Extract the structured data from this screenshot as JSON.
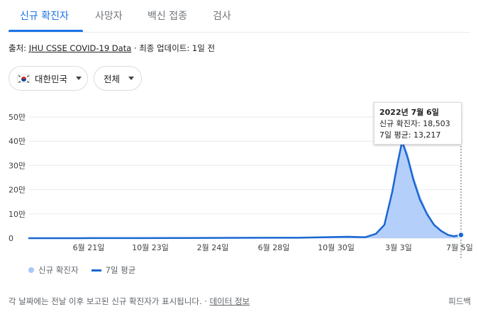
{
  "tabs": [
    {
      "label": "신규 확진자",
      "active": true
    },
    {
      "label": "사망자",
      "active": false
    },
    {
      "label": "백신 접종",
      "active": false
    },
    {
      "label": "검사",
      "active": false
    }
  ],
  "source": {
    "prefix": "출처: ",
    "link": "JHU CSSE COVID-19 Data",
    "suffix": " · 최종 업데이트: 1일 전"
  },
  "filters": {
    "country": "대한민국",
    "region": "전체"
  },
  "colors": {
    "accent": "#1a73e8",
    "bars": "#a8c7fa",
    "avg_line": "#1967d2"
  },
  "chart_data": {
    "type": "area",
    "yticks": [
      "0",
      "10만",
      "20만",
      "30만",
      "40만",
      "50만"
    ],
    "ylim": [
      0,
      500000
    ],
    "xticks": [
      "6월 21일",
      "10월 23일",
      "2월 24일",
      "6월 28일",
      "10월 30일",
      "3월 3일",
      "7월 5일"
    ],
    "series": [
      {
        "name": "신규 확진자",
        "kind": "bars",
        "x": [
          "2020-01",
          "2020-04",
          "2020-07",
          "2020-10",
          "2021-01",
          "2021-04",
          "2021-07",
          "2021-10",
          "2021-12",
          "2022-01-15",
          "2022-02-01",
          "2022-02-15",
          "2022-03-01",
          "2022-03-10",
          "2022-03-17",
          "2022-03-24",
          "2022-04-01",
          "2022-04-10",
          "2022-04-20",
          "2022-05-01",
          "2022-05-15",
          "2022-06-01",
          "2022-06-15",
          "2022-07-06"
        ],
        "values": [
          0,
          0,
          100,
          300,
          500,
          700,
          1500,
          2000,
          6000,
          4000,
          20000,
          60000,
          210000,
          320000,
          410000,
          350000,
          260000,
          180000,
          110000,
          60000,
          35000,
          15000,
          8000,
          18503
        ]
      },
      {
        "name": "7일 평균",
        "kind": "line",
        "x": [
          "2020-01",
          "2020-04",
          "2020-07",
          "2020-10",
          "2021-01",
          "2021-04",
          "2021-07",
          "2021-10",
          "2021-12",
          "2022-01-15",
          "2022-02-01",
          "2022-02-15",
          "2022-03-01",
          "2022-03-10",
          "2022-03-17",
          "2022-03-24",
          "2022-04-01",
          "2022-04-10",
          "2022-04-20",
          "2022-05-01",
          "2022-05-15",
          "2022-06-01",
          "2022-06-15",
          "2022-07-06"
        ],
        "values": [
          0,
          0,
          100,
          300,
          500,
          700,
          1500,
          2000,
          6000,
          4000,
          18000,
          55000,
          190000,
          300000,
          400000,
          330000,
          240000,
          160000,
          100000,
          55000,
          30000,
          13000,
          8000,
          13217
        ]
      }
    ],
    "tooltip": {
      "date": "2022년 7월 6일",
      "cases_label": "신규 확진자: 18,503",
      "avg_label": "7일 평균: 13,217"
    },
    "legend": [
      "신규 확진자",
      "7일 평균"
    ],
    "grid": true
  },
  "footer": {
    "note": "각 날짜에는 전날 이후 보고된 신규 확진자가 표시됩니다. · ",
    "link": "데이터 정보",
    "feedback": "피드백"
  }
}
